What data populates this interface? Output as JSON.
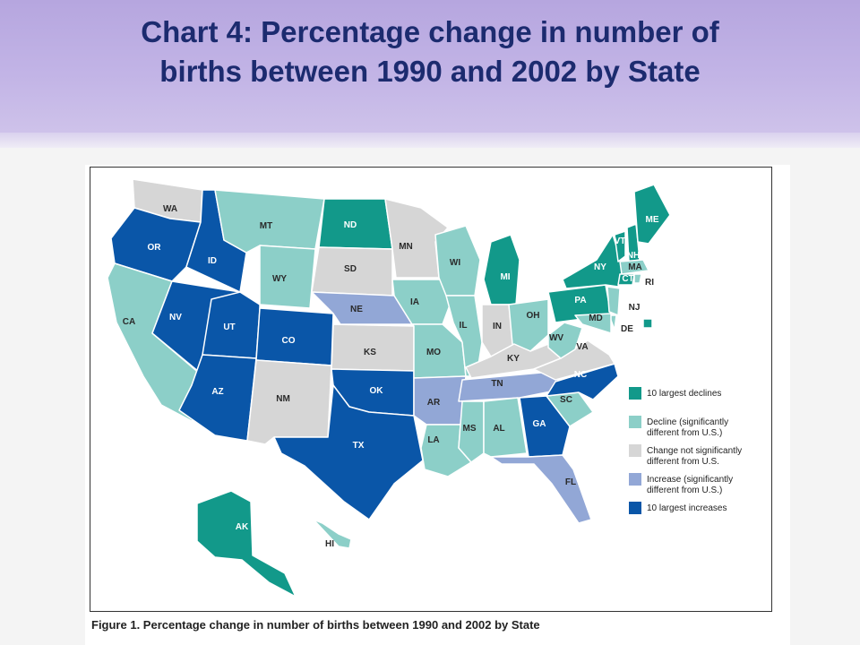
{
  "slide": {
    "title_line1": "Chart 4: Percentage change in number of",
    "title_line2": "births between 1990 and 2002 by State"
  },
  "figure_caption": "Figure 1. Percentage change in number of births between 1990 and 2002 by State",
  "colors": {
    "largest_declines": "#12998a",
    "decline": "#8ccfc8",
    "not_significant": "#d6d6d6",
    "increase": "#92a7d6",
    "largest_increases": "#0a56a8"
  },
  "legend": [
    {
      "key": "largest_declines",
      "label": [
        "10 largest declines"
      ]
    },
    {
      "key": "decline",
      "label": [
        "Decline (significantly",
        "different from U.S.)"
      ]
    },
    {
      "key": "not_significant",
      "label": [
        "Change not significantly",
        "different from U.S."
      ]
    },
    {
      "key": "increase",
      "label": [
        "Increase (significantly",
        "different from U.S.)"
      ]
    },
    {
      "key": "largest_increases",
      "label": [
        "10 largest increases"
      ]
    }
  ],
  "states": {
    "WA": "not_significant",
    "OR": "largest_increases",
    "CA": "decline",
    "ID": "largest_increases",
    "NV": "largest_increases",
    "MT": "decline",
    "WY": "decline",
    "UT": "largest_increases",
    "AZ": "largest_increases",
    "CO": "largest_increases",
    "NM": "not_significant",
    "ND": "largest_declines",
    "SD": "not_significant",
    "NE": "increase",
    "KS": "not_significant",
    "OK": "largest_increases",
    "TX": "largest_increases",
    "MN": "not_significant",
    "IA": "decline",
    "MO": "decline",
    "AR": "increase",
    "LA": "decline",
    "WI": "decline",
    "IL": "decline",
    "MI": "largest_declines",
    "IN": "not_significant",
    "OH": "decline",
    "KY": "not_significant",
    "TN": "increase",
    "MS": "decline",
    "AL": "decline",
    "GA": "largest_increases",
    "FL": "increase",
    "SC": "decline",
    "NC": "largest_increases",
    "VA": "not_significant",
    "WV": "decline",
    "PA": "largest_declines",
    "NY": "largest_declines",
    "VT": "largest_declines",
    "NH": "largest_declines",
    "ME": "largest_declines",
    "MA": "decline",
    "CT": "largest_declines",
    "RI": "decline",
    "NJ": "decline",
    "DE": "decline",
    "MD": "decline",
    "DC": "largest_declines",
    "AK": "largest_declines",
    "HI": "decline"
  }
}
